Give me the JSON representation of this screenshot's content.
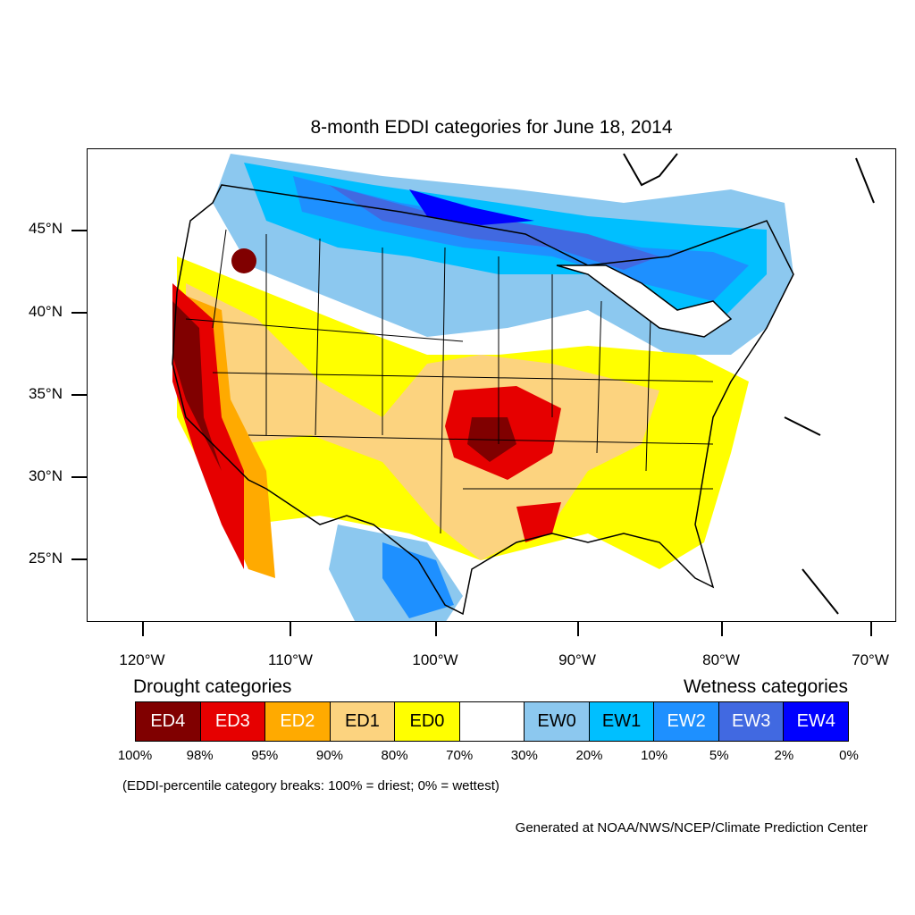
{
  "title": "8-month EDDI categories for June 18, 2014",
  "lat_labels": [
    "45°N",
    "40°N",
    "35°N",
    "30°N",
    "25°N"
  ],
  "lon_labels": [
    "120°W",
    "110°W",
    "100°W",
    "90°W",
    "80°W",
    "70°W"
  ],
  "legend": {
    "drought_heading": "Drought categories",
    "wetness_heading": "Wetness categories",
    "categories": [
      {
        "label": "ED4",
        "color": "#800000",
        "text_color": "#ffffff"
      },
      {
        "label": "ED3",
        "color": "#e60000",
        "text_color": "#ffffff"
      },
      {
        "label": "ED2",
        "color": "#ffaa00",
        "text_color": "#ffffff"
      },
      {
        "label": "ED1",
        "color": "#fcd37f",
        "text_color": "#000000"
      },
      {
        "label": "ED0",
        "color": "#ffff00",
        "text_color": "#000000"
      },
      {
        "label": "",
        "color": "#ffffff",
        "text_color": "#000000"
      },
      {
        "label": "EW0",
        "color": "#8cc8ef",
        "text_color": "#000000"
      },
      {
        "label": "EW1",
        "color": "#00bfff",
        "text_color": "#000000"
      },
      {
        "label": "EW2",
        "color": "#1e90ff",
        "text_color": "#ffffff"
      },
      {
        "label": "EW3",
        "color": "#4169e1",
        "text_color": "#ffffff"
      },
      {
        "label": "EW4",
        "color": "#0000ff",
        "text_color": "#ffffff"
      }
    ],
    "percent_breaks": [
      "100%",
      "98%",
      "95%",
      "90%",
      "80%",
      "70%",
      "30%",
      "20%",
      "10%",
      "5%",
      "2%",
      "0%"
    ],
    "note": "(EDDI-percentile category breaks: 100% = driest; 0% = wettest)"
  },
  "credit": "Generated at NOAA/NWS/NCEP/Climate Prediction Center"
}
